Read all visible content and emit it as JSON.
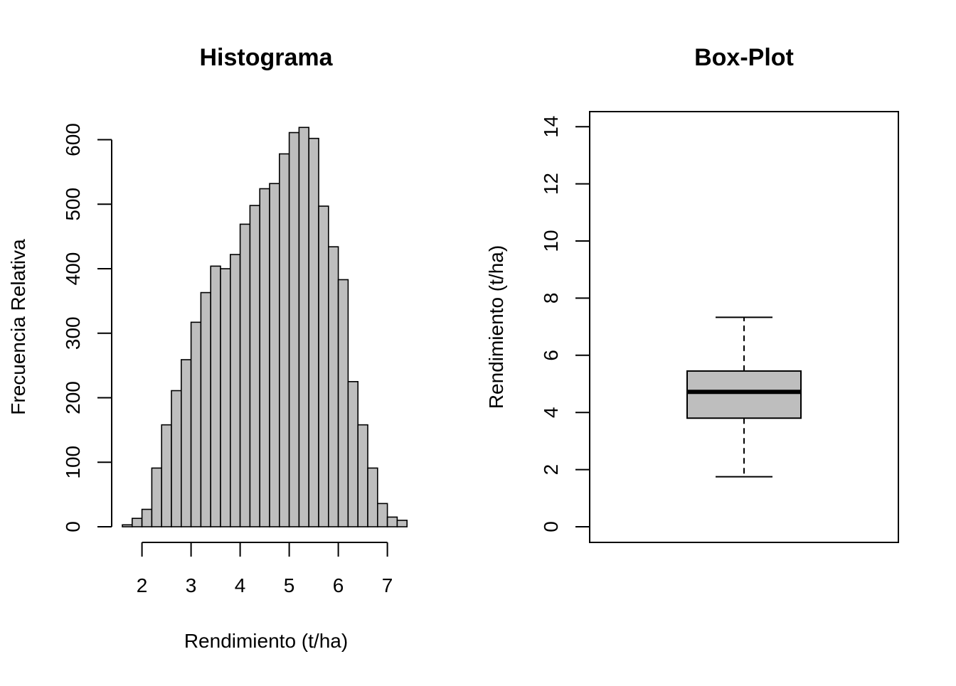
{
  "chart_data": [
    {
      "type": "bar",
      "title": "Histograma",
      "xlabel": "Rendimiento (t/ha)",
      "ylabel": "Frecuencia Relativa",
      "bin_width": 0.2,
      "bin_start": 1.6,
      "xlim": [
        1.6,
        7.4
      ],
      "ylim": [
        0,
        600
      ],
      "x_ticks": [
        2,
        3,
        4,
        5,
        6,
        7
      ],
      "y_ticks": [
        0,
        100,
        200,
        300,
        400,
        500,
        600
      ],
      "values": [
        3,
        13,
        27,
        91,
        158,
        211,
        259,
        317,
        363,
        404,
        400,
        422,
        469,
        498,
        524,
        532,
        578,
        611,
        619,
        602,
        497,
        434,
        383,
        225,
        158,
        91,
        36,
        15,
        10
      ],
      "colors": {
        "bar_fill": "#bebebe",
        "bar_stroke": "#000000"
      }
    },
    {
      "type": "box",
      "title": "Box-Plot",
      "ylabel": "Rendimiento (t/ha)",
      "ylim": [
        0,
        14
      ],
      "y_ticks": [
        0,
        2,
        4,
        6,
        8,
        10,
        12,
        14
      ],
      "whisker_low": 1.75,
      "q1": 3.8,
      "median": 4.72,
      "q3": 5.45,
      "whisker_high": 7.33,
      "colors": {
        "box_fill": "#bebebe",
        "box_stroke": "#000000"
      }
    }
  ]
}
